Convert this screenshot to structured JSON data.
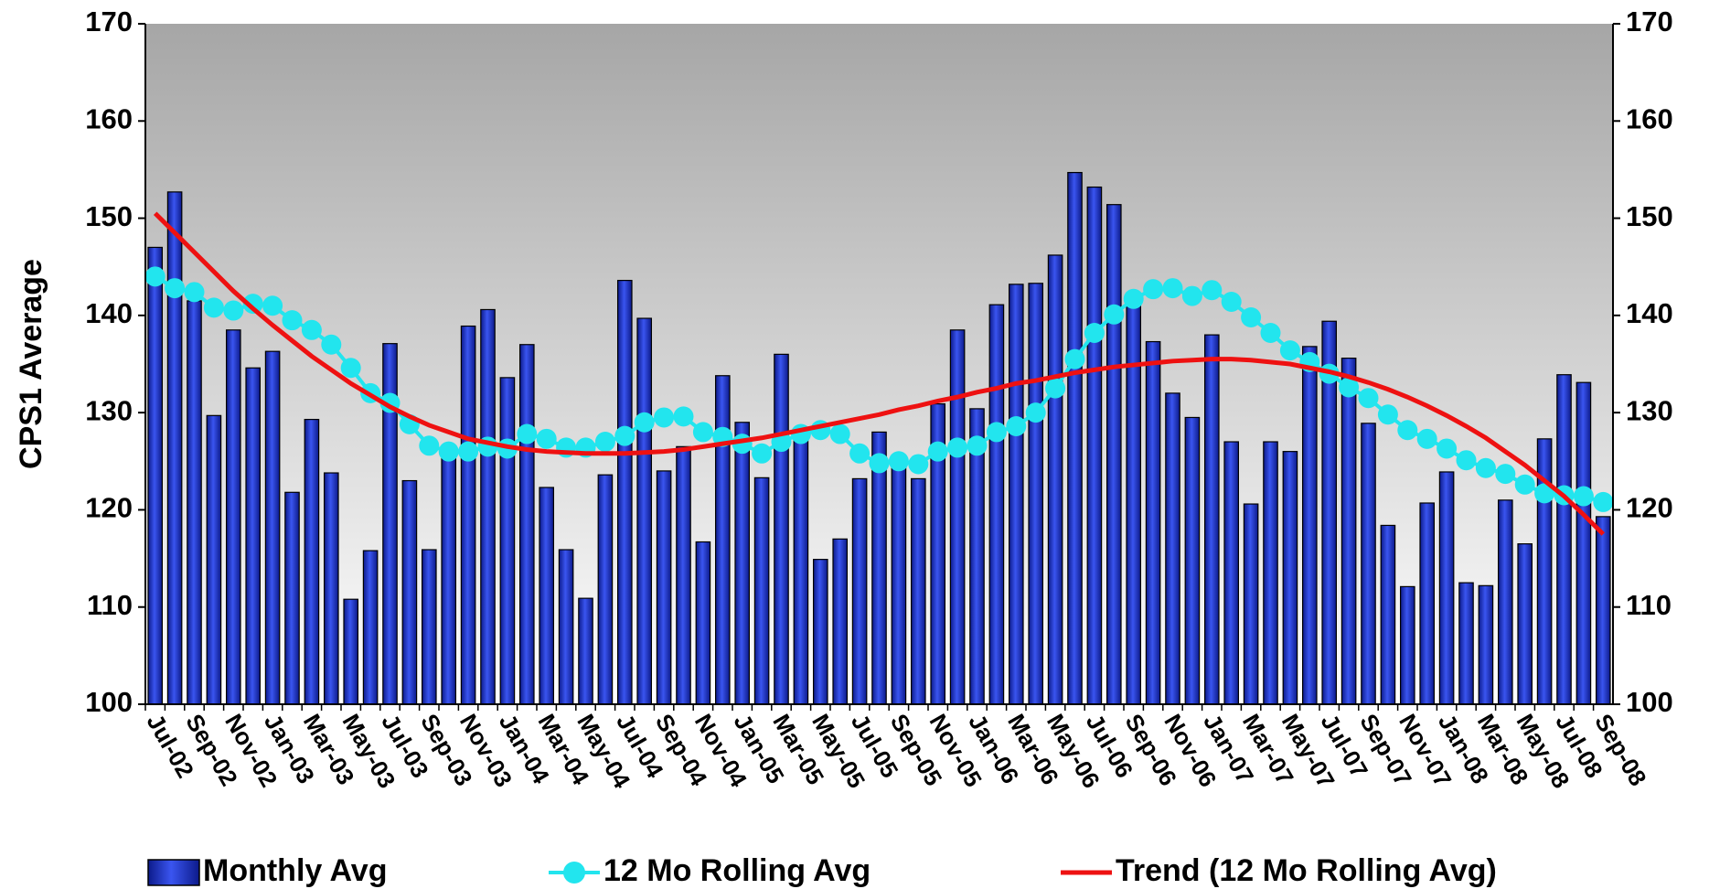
{
  "chart_data": {
    "type": "bar",
    "y_label": "CPS1 Average",
    "categories": [
      "Jul-02",
      null,
      "Sep-02",
      null,
      "Nov-02",
      null,
      "Jan-03",
      null,
      "Mar-03",
      null,
      "May-03",
      null,
      "Jul-03",
      null,
      "Sep-03",
      null,
      "Nov-03",
      null,
      "Jan-04",
      null,
      "Mar-04",
      null,
      "May-04",
      null,
      "Jul-04",
      null,
      "Sep-04",
      null,
      "Nov-04",
      null,
      "Jan-05",
      null,
      "Mar-05",
      null,
      "May-05",
      null,
      "Jul-05",
      null,
      "Sep-05",
      null,
      "Nov-05",
      null,
      "Jan-06",
      null,
      "Mar-06",
      null,
      "May-06",
      null,
      "Jul-06",
      null,
      "Sep-06",
      null,
      "Nov-06",
      null,
      "Jan-07",
      null,
      "Mar-07",
      null,
      "May-07",
      null,
      "Jul-07",
      null,
      "Sep-07",
      null,
      "Nov-07",
      null,
      "Jan-08",
      null,
      "Mar-08",
      null,
      "May-08",
      null,
      "Jul-08",
      null,
      "Sep-08"
    ],
    "series": [
      {
        "name": "Monthly Avg",
        "type": "bar",
        "color": "#2a3fd8",
        "values": [
          147,
          152.7,
          141.5,
          129.7,
          138.5,
          134.6,
          136.3,
          121.8,
          129.3,
          123.8,
          110.8,
          115.8,
          137.1,
          123.0,
          115.9,
          126,
          138.9,
          140.6,
          133.6,
          137.0,
          122.3,
          115.9,
          110.9,
          123.6,
          143.6,
          139.7,
          124.0,
          126.5,
          116.7,
          133.8,
          129.0,
          123.3,
          136.0,
          127.5,
          114.9,
          117.0,
          123.2,
          128.0,
          125.0,
          123.2,
          130.9,
          138.5,
          130.4,
          141.1,
          143.2,
          143.3,
          146.2,
          154.7,
          153.2,
          151.4,
          142.3,
          137.3,
          132.0,
          129.5,
          138.0,
          127.0,
          120.6,
          127.0,
          126.0,
          136.8,
          139.4,
          135.6,
          128.9,
          118.4,
          112.1,
          120.7,
          123.9,
          112.5,
          112.2,
          121.0,
          116.5,
          127.3,
          133.9,
          133.1,
          119.3
        ]
      },
      {
        "name": "12 Mo Rolling Avg",
        "type": "line-markers",
        "color": "#22e5ee",
        "values": [
          144.0,
          142.8,
          142.4,
          140.8,
          140.5,
          141.2,
          141.0,
          139.5,
          138.5,
          137.0,
          134.6,
          132.0,
          131.0,
          128.8,
          126.6,
          126.0,
          126.0,
          126.5,
          126.3,
          127.8,
          127.3,
          126.4,
          126.4,
          127.0,
          127.6,
          129.0,
          129.5,
          129.6,
          128.0,
          127.5,
          126.8,
          125.8,
          127.0,
          127.8,
          128.2,
          127.8,
          125.8,
          124.8,
          125.0,
          124.7,
          126.0,
          126.4,
          126.6,
          128.0,
          128.6,
          130.0,
          132.5,
          135.5,
          138.2,
          140.1,
          141.7,
          142.7,
          142.8,
          142.0,
          142.6,
          141.4,
          139.8,
          138.2,
          136.4,
          135.2,
          134.0,
          132.6,
          131.5,
          129.8,
          128.2,
          127.3,
          126.3,
          125.1,
          124.3,
          123.7,
          122.6,
          121.7,
          121.5,
          121.4,
          120.8
        ]
      },
      {
        "name": "Trend (12 Mo Rolling Avg)",
        "type": "line",
        "color": "#ee1111",
        "values": [
          150.5,
          148.5,
          146.5,
          144.5,
          142.5,
          140.7,
          139,
          137.4,
          135.8,
          134.4,
          133,
          131.8,
          130.6,
          129.6,
          128.7,
          128,
          127.3,
          126.9,
          126.5,
          126.2,
          126,
          125.9,
          125.8,
          125.8,
          125.8,
          125.9,
          126,
          126.2,
          126.5,
          126.8,
          127.1,
          127.4,
          127.8,
          128.2,
          128.6,
          129,
          129.4,
          129.8,
          130.3,
          130.7,
          131.2,
          131.6,
          132.1,
          132.5,
          133,
          133.3,
          133.7,
          134.1,
          134.4,
          134.7,
          134.9,
          135.1,
          135.3,
          135.4,
          135.5,
          135.5,
          135.4,
          135.2,
          135,
          134.6,
          134.2,
          133.7,
          133.1,
          132.4,
          131.6,
          130.7,
          129.7,
          128.6,
          127.4,
          126,
          124.6,
          123,
          121.4,
          119.5,
          117.5
        ]
      }
    ],
    "ylim": [
      100,
      170
    ],
    "yticks": [
      100,
      110,
      120,
      130,
      140,
      150,
      160,
      170
    ],
    "y2lim": [
      100,
      170
    ],
    "y2ticks": [
      100,
      110,
      120,
      130,
      140,
      150,
      160,
      170
    ],
    "legend": "bottom"
  }
}
